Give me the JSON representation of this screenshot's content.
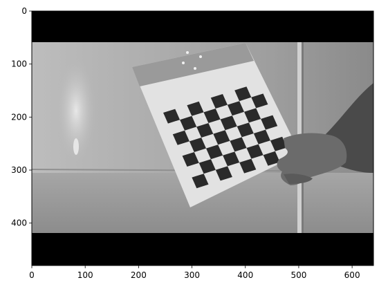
{
  "chart_data": {
    "type": "image",
    "x_ticks": [
      "0",
      "100",
      "200",
      "300",
      "400",
      "500",
      "600"
    ],
    "y_ticks": [
      "0",
      "100",
      "200",
      "300",
      "400"
    ],
    "xlim": [
      0,
      640
    ],
    "ylim": [
      480,
      0
    ],
    "grid": false,
    "image_content": {
      "kind": "grayscale photograph",
      "bands": [
        {
          "y0": 0,
          "y1": 58,
          "color": "#000000"
        },
        {
          "y0": 420,
          "y1": 480,
          "color": "#000000"
        }
      ]
    },
    "colors": {
      "frame": "#000000",
      "background": "#ffffff"
    }
  }
}
